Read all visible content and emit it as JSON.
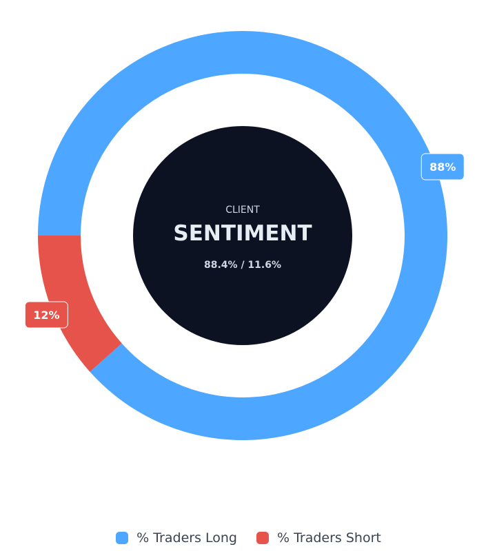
{
  "chart_data": {
    "type": "pie",
    "variant": "donut",
    "center": {
      "kicker": "CLIENT",
      "title": "SENTIMENT",
      "subtitle": "88.4% / 11.6%"
    },
    "series": [
      {
        "name": "% Traders Long",
        "value": 88.4,
        "label": "88%",
        "color": "#4da6ff"
      },
      {
        "name": "% Traders Short",
        "value": 11.6,
        "label": "12%",
        "color": "#e5534b"
      }
    ],
    "legend_position": "bottom"
  },
  "colors": {
    "center_fill": "#0c1221",
    "center_text": "#e8ecf3",
    "label_text": "#ffffff"
  }
}
